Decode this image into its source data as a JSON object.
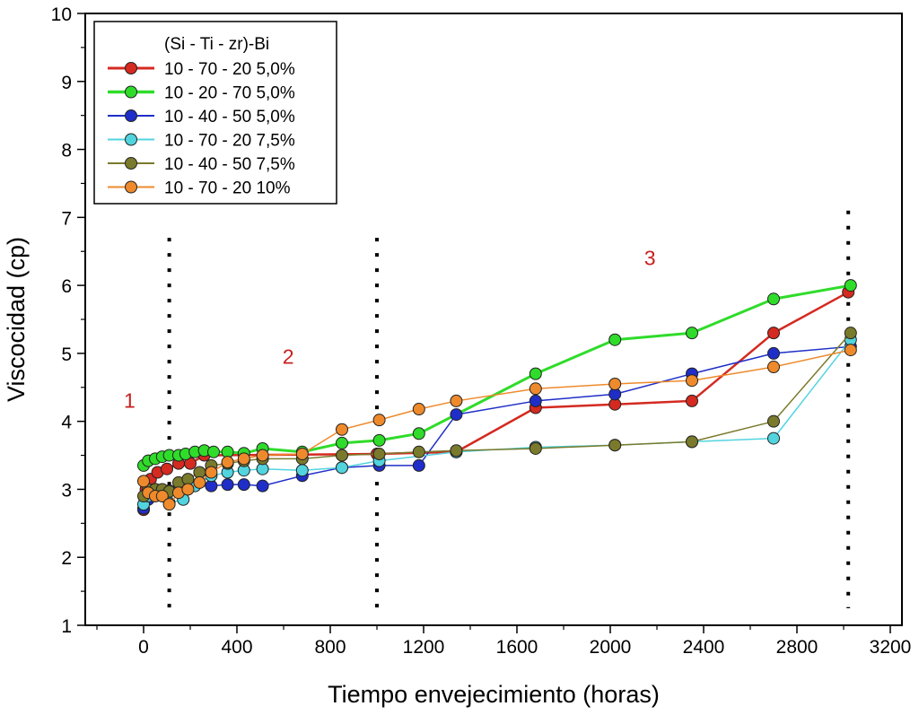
{
  "chart_data": {
    "type": "line",
    "xlabel": "Tiempo envejecimiento (horas)",
    "ylabel": "Viscocidad (cp)",
    "xlim": [
      -250,
      3250
    ],
    "ylim": [
      1,
      10
    ],
    "xticks": [
      0,
      400,
      800,
      1200,
      1600,
      2000,
      2400,
      2800,
      3200
    ],
    "yticks": [
      1,
      2,
      3,
      4,
      5,
      6,
      7,
      8,
      9,
      10
    ],
    "grid": false,
    "legend": {
      "title": "(Si - Ti - zr)-Bi",
      "placement": "top-left"
    },
    "region_boundaries": [
      110,
      1000,
      3020
    ],
    "region_labels": [
      {
        "text": "1",
        "x": -60,
        "y": 4.2
      },
      {
        "text": "2",
        "x": 620,
        "y": 4.85
      },
      {
        "text": "3",
        "x": 2170,
        "y": 6.3
      }
    ],
    "series": [
      {
        "name": "10 - 70 - 20  5,0%",
        "color": "#d42a20",
        "line_width": 2.5,
        "x": [
          0,
          10,
          30,
          60,
          100,
          150,
          200,
          260,
          1000,
          1340,
          1680,
          2020,
          2350,
          2700,
          3020
        ],
        "y": [
          2.7,
          3.0,
          3.15,
          3.25,
          3.3,
          3.38,
          3.38,
          3.5,
          3.52,
          3.55,
          4.2,
          4.25,
          4.3,
          5.3,
          5.9
        ]
      },
      {
        "name": "10 - 20 - 70  5,0%",
        "color": "#2fdc2a",
        "line_width": 3,
        "x": [
          0,
          20,
          50,
          80,
          110,
          150,
          180,
          220,
          260,
          300,
          360,
          430,
          510,
          680,
          850,
          1010,
          1180,
          1680,
          2020,
          2350,
          2700,
          3030
        ],
        "y": [
          3.35,
          3.42,
          3.45,
          3.48,
          3.5,
          3.5,
          3.52,
          3.55,
          3.57,
          3.55,
          3.55,
          3.53,
          3.6,
          3.55,
          3.68,
          3.72,
          3.82,
          4.7,
          5.2,
          5.3,
          5.8,
          6.0
        ]
      },
      {
        "name": "10 - 40 - 50  5,0%",
        "color": "#1f2ec8",
        "line_width": 1.5,
        "x": [
          0,
          20,
          50,
          80,
          110,
          150,
          200,
          290,
          360,
          430,
          510,
          680,
          850,
          1010,
          1180,
          1340,
          1680,
          2020,
          2350,
          2700,
          3030
        ],
        "y": [
          2.72,
          2.85,
          2.95,
          2.98,
          2.98,
          3.0,
          3.05,
          3.05,
          3.07,
          3.07,
          3.05,
          3.2,
          3.32,
          3.35,
          3.35,
          4.1,
          4.3,
          4.4,
          4.7,
          5.0,
          5.1
        ]
      },
      {
        "name": "10 - 70 - 20  7,5%",
        "color": "#52d4df",
        "line_width": 1.5,
        "x": [
          0,
          20,
          50,
          80,
          110,
          170,
          220,
          290,
          360,
          430,
          510,
          680,
          850,
          1010,
          1340,
          1680,
          2020,
          2350,
          2700,
          3030
        ],
        "y": [
          2.78,
          2.9,
          3.0,
          2.95,
          2.8,
          2.85,
          3.05,
          3.2,
          3.25,
          3.28,
          3.3,
          3.28,
          3.32,
          3.42,
          3.55,
          3.62,
          3.65,
          3.7,
          3.75,
          5.2
        ]
      },
      {
        "name": "10 - 40 - 50  7,5%",
        "color": "#7a7a2c",
        "line_width": 1.5,
        "x": [
          0,
          20,
          50,
          80,
          110,
          150,
          190,
          240,
          290,
          360,
          430,
          510,
          680,
          850,
          1010,
          1180,
          1340,
          1680,
          2020,
          2350,
          2700,
          3030
        ],
        "y": [
          2.9,
          3.0,
          3.0,
          3.0,
          2.97,
          3.1,
          3.15,
          3.25,
          3.35,
          3.38,
          3.42,
          3.45,
          3.45,
          3.5,
          3.52,
          3.55,
          3.57,
          3.6,
          3.65,
          3.7,
          4.0,
          5.3
        ]
      },
      {
        "name": "10 - 70 - 20  10%",
        "color": "#ee8a2c",
        "line_width": 1.5,
        "x": [
          0,
          20,
          50,
          80,
          110,
          150,
          190,
          240,
          290,
          360,
          430,
          510,
          680,
          850,
          1010,
          1180,
          1340,
          1680,
          2020,
          2350,
          2700,
          3030
        ],
        "y": [
          3.12,
          2.95,
          2.9,
          2.9,
          2.78,
          2.95,
          3.0,
          3.1,
          3.25,
          3.4,
          3.45,
          3.5,
          3.52,
          3.88,
          4.02,
          4.18,
          4.3,
          4.48,
          4.55,
          4.6,
          4.8,
          5.05
        ]
      }
    ]
  }
}
